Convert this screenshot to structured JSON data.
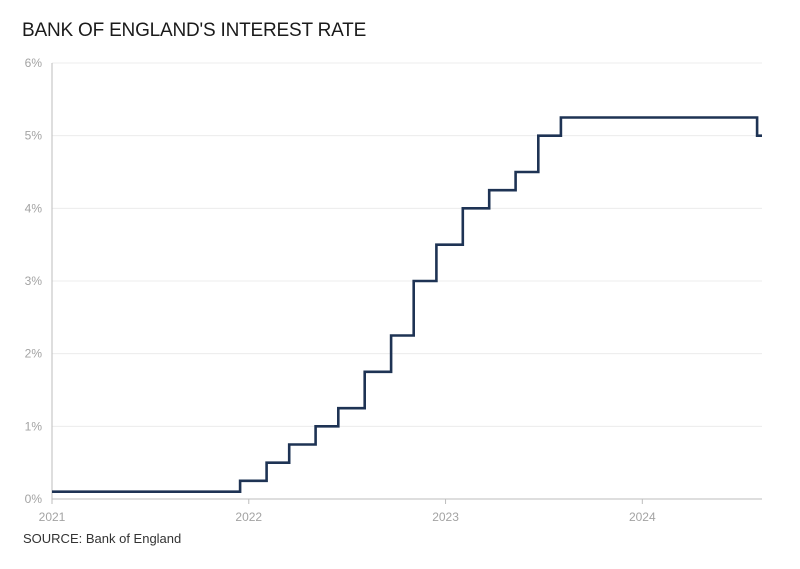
{
  "chart_data": {
    "type": "line",
    "title": "BANK OF ENGLAND'S INTEREST RATE",
    "source": "SOURCE: Bank of England",
    "step": true,
    "xlabel": "",
    "ylabel": "",
    "x_range": [
      "2021-01-01",
      "2024-08-10"
    ],
    "ylim": [
      0,
      6
    ],
    "yticks": [
      0,
      1,
      2,
      3,
      4,
      5,
      6
    ],
    "ytick_labels": [
      "0%",
      "1%",
      "2%",
      "3%",
      "4%",
      "5%",
      "6%"
    ],
    "xticks": [
      {
        "date": "2021-01-01",
        "label": "2021"
      },
      {
        "date": "2022-01-01",
        "label": "2022"
      },
      {
        "date": "2023-01-01",
        "label": "2023"
      },
      {
        "date": "2024-01-01",
        "label": "2024"
      }
    ],
    "grid": "horizontal",
    "legend": "none",
    "colors": {
      "line": "#1e3354",
      "grid": "#ececec",
      "axis": "#bdbdbd",
      "tick_text": "#a3a3a3",
      "title": "#1b1b1b"
    },
    "series": [
      {
        "points": [
          {
            "date": "2021-01-01",
            "rate": 0.1
          },
          {
            "date": "2021-12-16",
            "rate": 0.25
          },
          {
            "date": "2022-02-03",
            "rate": 0.5
          },
          {
            "date": "2022-03-17",
            "rate": 0.75
          },
          {
            "date": "2022-05-05",
            "rate": 1.0
          },
          {
            "date": "2022-06-16",
            "rate": 1.25
          },
          {
            "date": "2022-08-04",
            "rate": 1.75
          },
          {
            "date": "2022-09-22",
            "rate": 2.25
          },
          {
            "date": "2022-11-03",
            "rate": 3.0
          },
          {
            "date": "2022-12-15",
            "rate": 3.5
          },
          {
            "date": "2023-02-02",
            "rate": 4.0
          },
          {
            "date": "2023-03-23",
            "rate": 4.25
          },
          {
            "date": "2023-05-11",
            "rate": 4.5
          },
          {
            "date": "2023-06-22",
            "rate": 5.0
          },
          {
            "date": "2023-08-03",
            "rate": 5.25
          },
          {
            "date": "2024-08-01",
            "rate": 5.0
          }
        ],
        "end_date": "2024-08-10"
      }
    ]
  }
}
